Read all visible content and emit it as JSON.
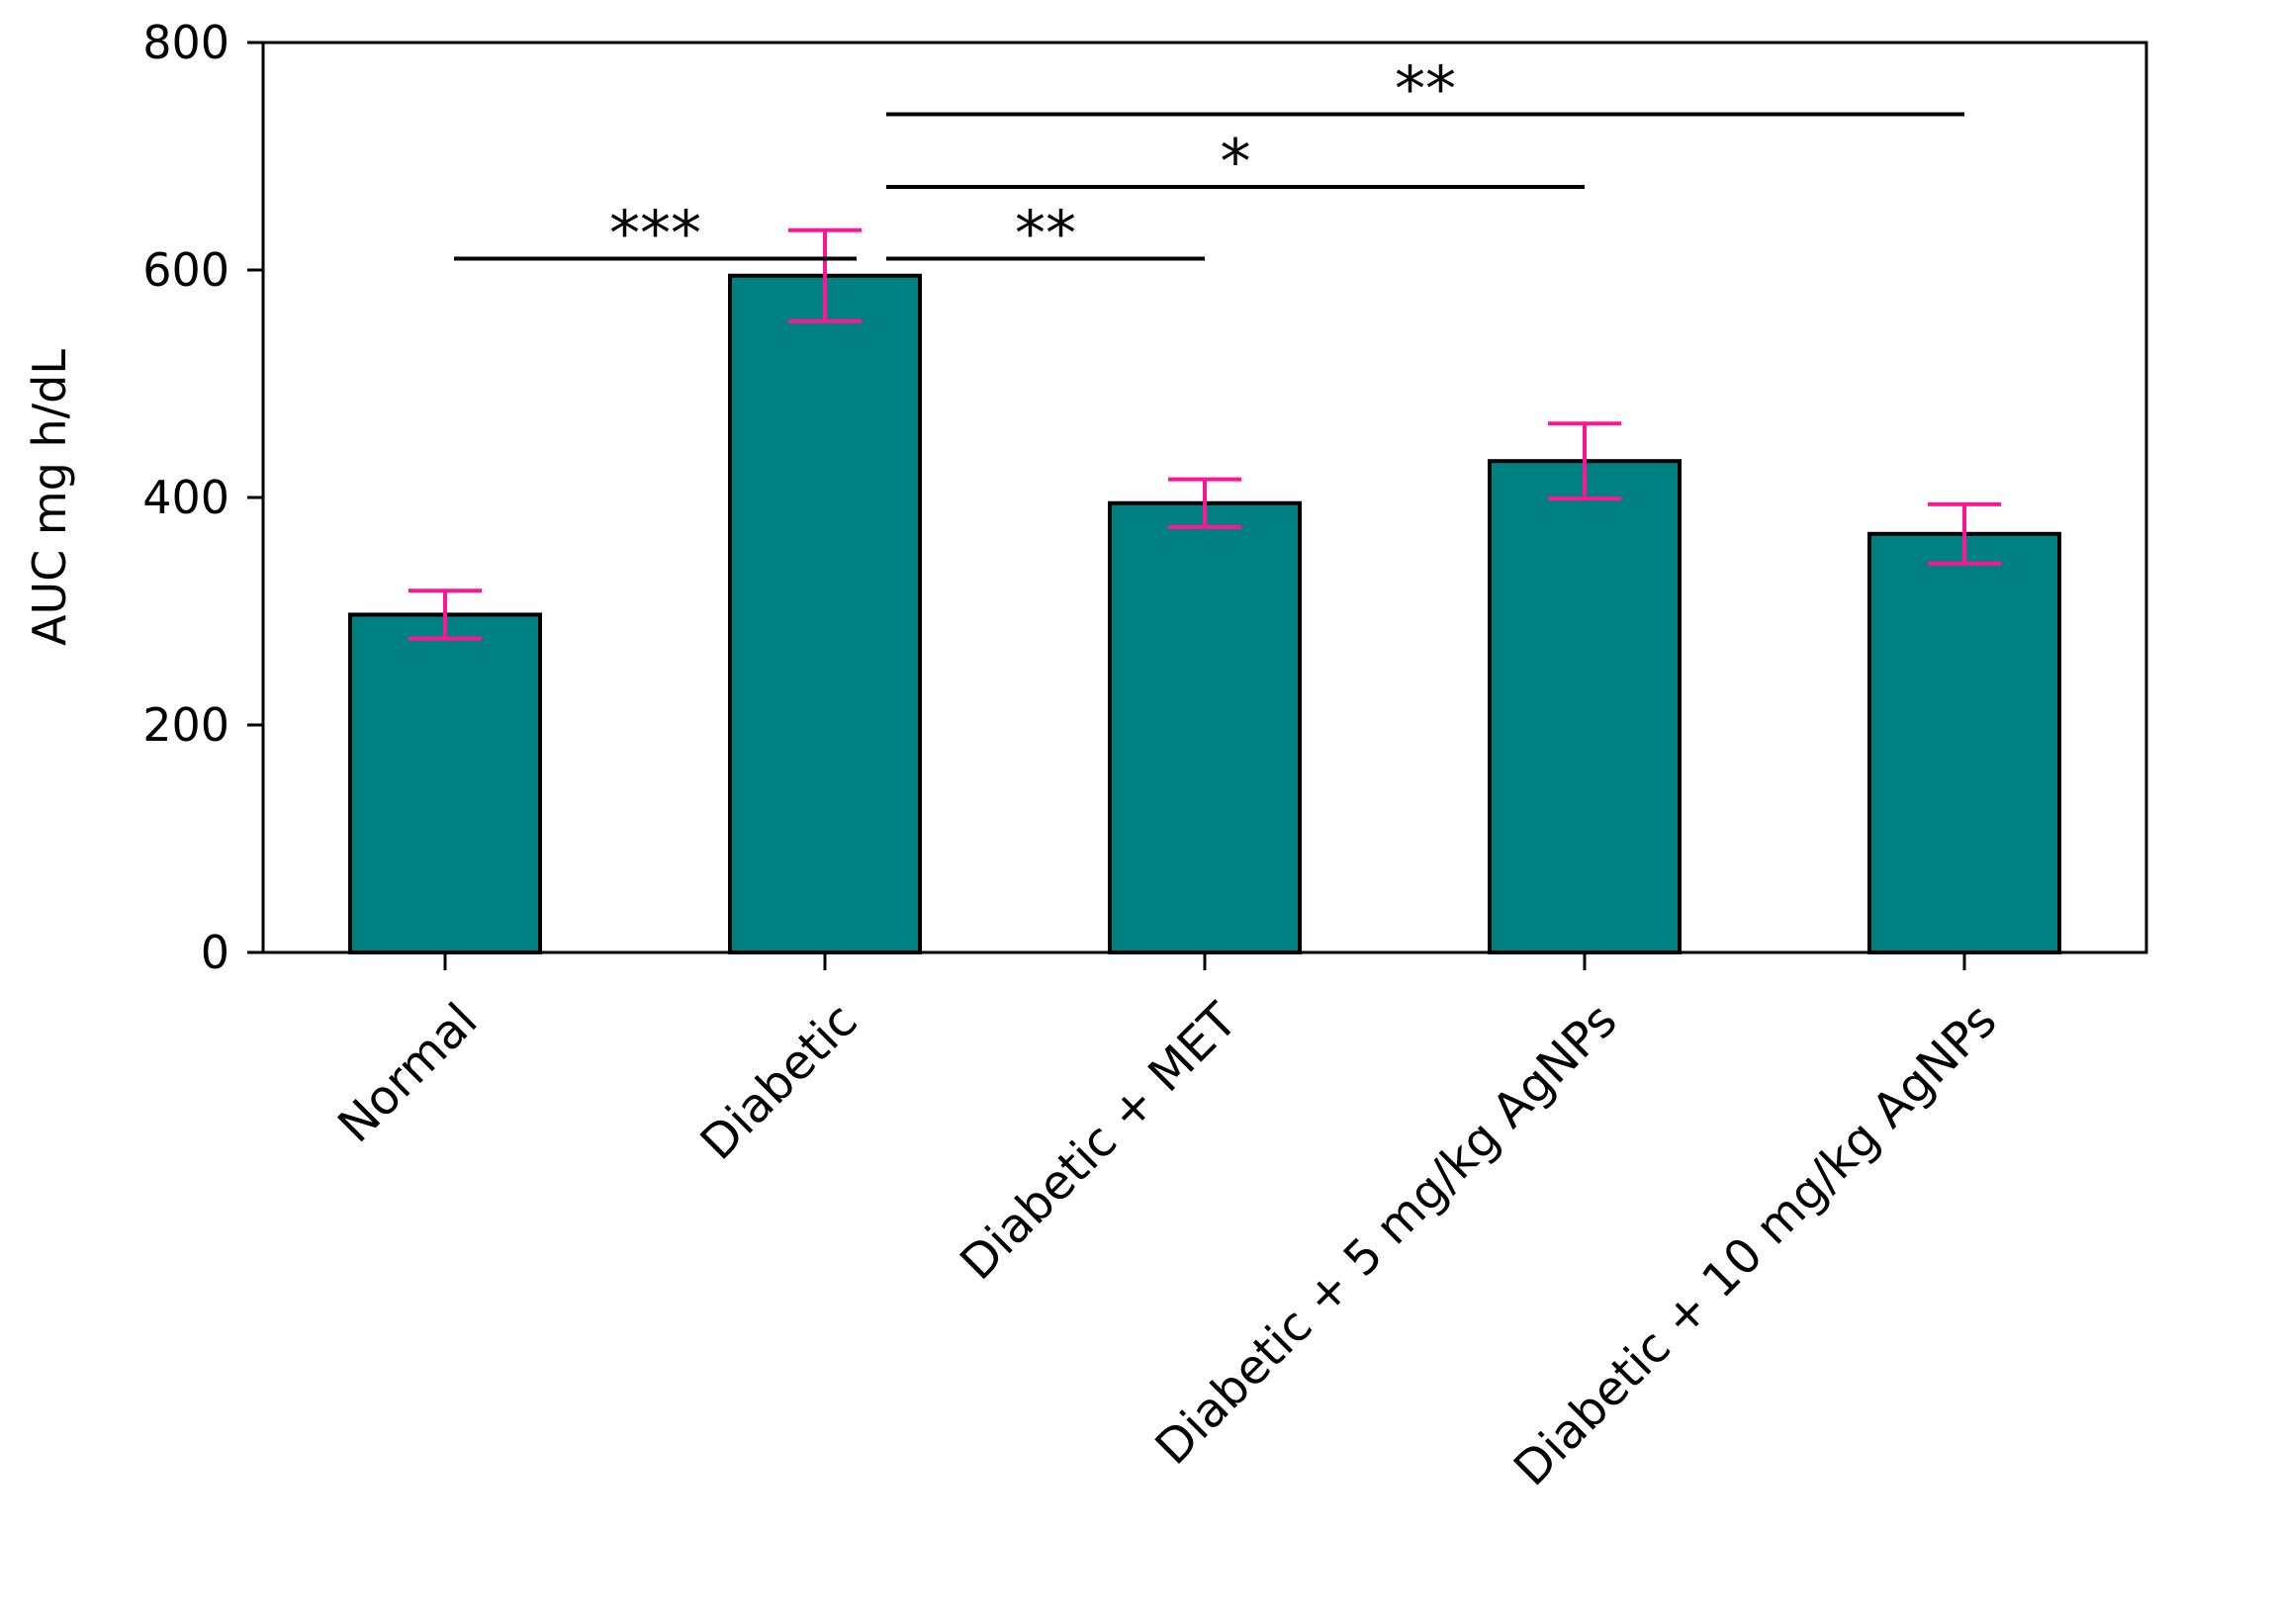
{
  "chart_data": {
    "type": "bar",
    "title": "",
    "xlabel": "",
    "ylabel": "AUC mg h/dL",
    "ylim": [
      0,
      800
    ],
    "yticks": [
      0,
      200,
      400,
      600,
      800
    ],
    "grid": false,
    "categories": [
      "Normal",
      "Diabetic",
      "Diabetic + MET",
      "Diabetic + 5 mg/kg AgNPs",
      "Diabetic + 10 mg/kg AgNPs"
    ],
    "values": [
      297,
      595,
      395,
      432,
      368
    ],
    "errors": [
      21,
      40,
      21,
      33,
      26
    ],
    "bar_color": "#008080",
    "bar_edge_color": "#000000",
    "error_color": "#ff1493",
    "significance": [
      {
        "from": 0,
        "to": 1,
        "level": 610,
        "label": "***"
      },
      {
        "from": 1,
        "to": 2,
        "level": 610,
        "label": "**"
      },
      {
        "from": 1,
        "to": 3,
        "level": 673,
        "label": "*"
      },
      {
        "from": 1,
        "to": 4,
        "level": 737,
        "label": "**"
      }
    ]
  }
}
